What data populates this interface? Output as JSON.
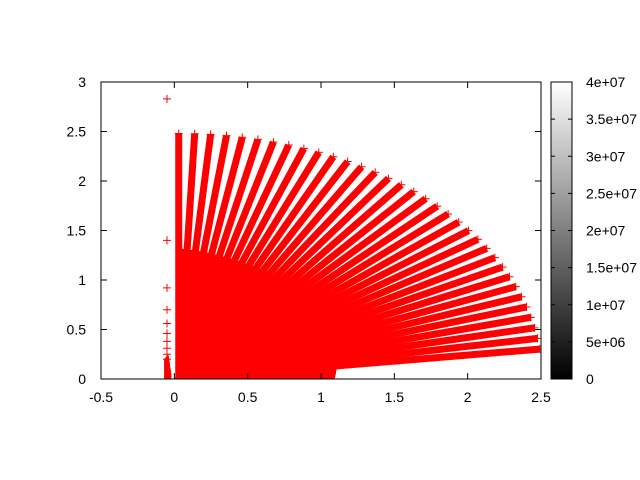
{
  "chart_data": {
    "type": "scatter",
    "title": "",
    "xlabel": "",
    "ylabel": "",
    "xlim": [
      -0.5,
      2.5
    ],
    "ylim": [
      0,
      3
    ],
    "xticks": [
      "-0.5",
      "0",
      "0.5",
      "1",
      "1.5",
      "2",
      "2.5"
    ],
    "xtick_values": [
      -0.5,
      0,
      0.5,
      1,
      1.5,
      2,
      2.5
    ],
    "yticks": [
      "0",
      "0.5",
      "1",
      "1.5",
      "2",
      "2.5",
      "3"
    ],
    "ytick_values": [
      0,
      0.5,
      1,
      1.5,
      2,
      2.5,
      3
    ],
    "grid": false,
    "marker": "plus",
    "point_color": "#ff0000",
    "rays": {
      "angles_deg_from": 90,
      "angles_deg_to": 7,
      "count": 34,
      "radius_max": 2.48
    },
    "outlier_points": [
      {
        "x": -0.05,
        "y": 2.83
      },
      {
        "x": -0.05,
        "y": 1.4
      },
      {
        "x": -0.05,
        "y": 0.92
      },
      {
        "x": -0.05,
        "y": 0.7
      },
      {
        "x": -0.05,
        "y": 0.56
      },
      {
        "x": -0.05,
        "y": 0.46
      },
      {
        "x": -0.05,
        "y": 0.38
      },
      {
        "x": -0.05,
        "y": 0.31
      },
      {
        "x": -0.05,
        "y": 0.25
      },
      {
        "x": -0.05,
        "y": 0.2
      }
    ],
    "colorbar": {
      "range": [
        0,
        40000000
      ],
      "ticks": [
        "0",
        "5e+06",
        "1e+07",
        "1.5e+07",
        "2e+07",
        "2.5e+07",
        "3e+07",
        "3.5e+07",
        "4e+07"
      ],
      "tick_values": [
        0,
        5000000,
        10000000,
        15000000,
        20000000,
        25000000,
        30000000,
        35000000,
        40000000
      ],
      "palette": "gray",
      "color_low": "#000000",
      "color_high": "#ffffff"
    }
  }
}
